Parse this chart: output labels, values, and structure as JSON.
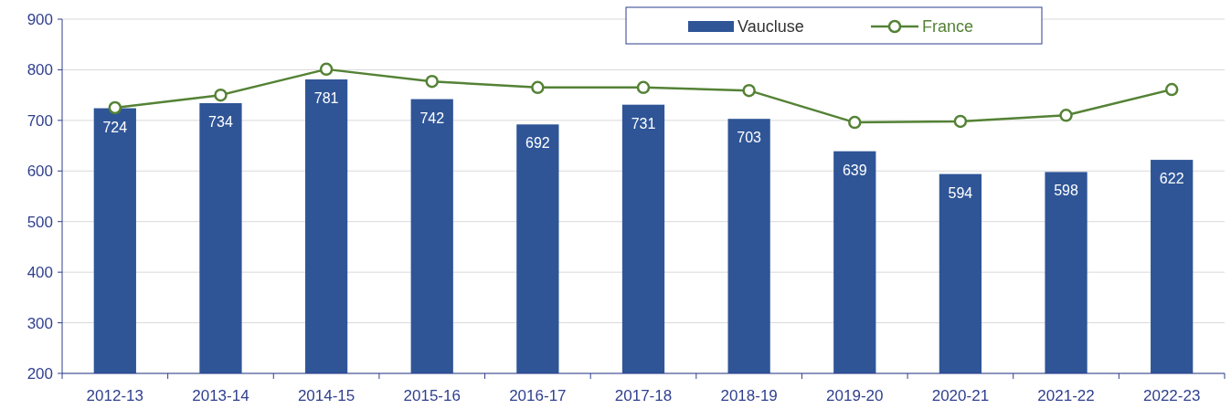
{
  "chart_data": {
    "type": "bar",
    "categories": [
      "2012-13",
      "2013-14",
      "2014-15",
      "2015-16",
      "2016-17",
      "2017-18",
      "2018-19",
      "2019-20",
      "2020-21",
      "2021-22",
      "2022-23"
    ],
    "series": [
      {
        "name": "Vaucluse",
        "color": "#2f5597",
        "values": [
          724,
          734,
          781,
          742,
          692,
          731,
          703,
          639,
          594,
          598,
          622
        ]
      },
      {
        "name": "France",
        "type": "line",
        "color": "#548235",
        "values": [
          725,
          750,
          801,
          777,
          765,
          765,
          759,
          696,
          698,
          710,
          761
        ]
      }
    ],
    "ylim": [
      200,
      900
    ],
    "yticks": [
      200,
      300,
      400,
      500,
      600,
      700,
      800,
      900
    ],
    "grid": "y",
    "legend": "top",
    "marker": "circle",
    "value_labels": [
      [
        "724",
        "734",
        "781",
        "742",
        "692",
        "731",
        "703",
        "639",
        "594",
        "598",
        "622"
      ],
      null
    ]
  }
}
